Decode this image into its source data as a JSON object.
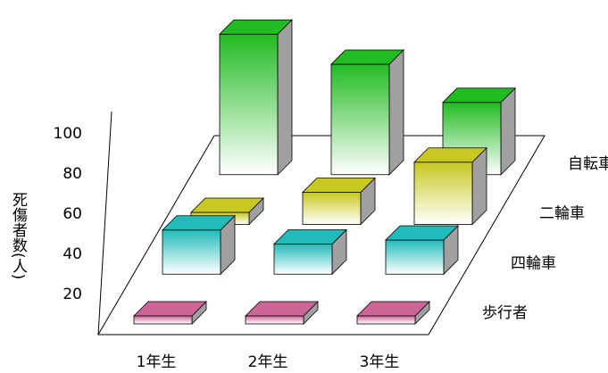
{
  "chart_data": {
    "type": "bar3d",
    "y_label": "死傷者数(人)",
    "categories": [
      "1年生",
      "2年生",
      "3年生"
    ],
    "series": [
      {
        "name": "自転車",
        "color": "#22bb22",
        "values": [
          70,
          55,
          36
        ]
      },
      {
        "name": "二輪車",
        "color": "#c8c820",
        "values": [
          6,
          16,
          31
        ]
      },
      {
        "name": "四輪車",
        "color": "#22bbbb",
        "values": [
          22,
          15,
          17
        ]
      },
      {
        "name": "歩行者",
        "color": "#cc6699",
        "values": [
          4,
          4,
          4
        ]
      }
    ],
    "ylim": [
      0,
      100
    ],
    "yticks": [
      20,
      40,
      60,
      80,
      100
    ]
  }
}
